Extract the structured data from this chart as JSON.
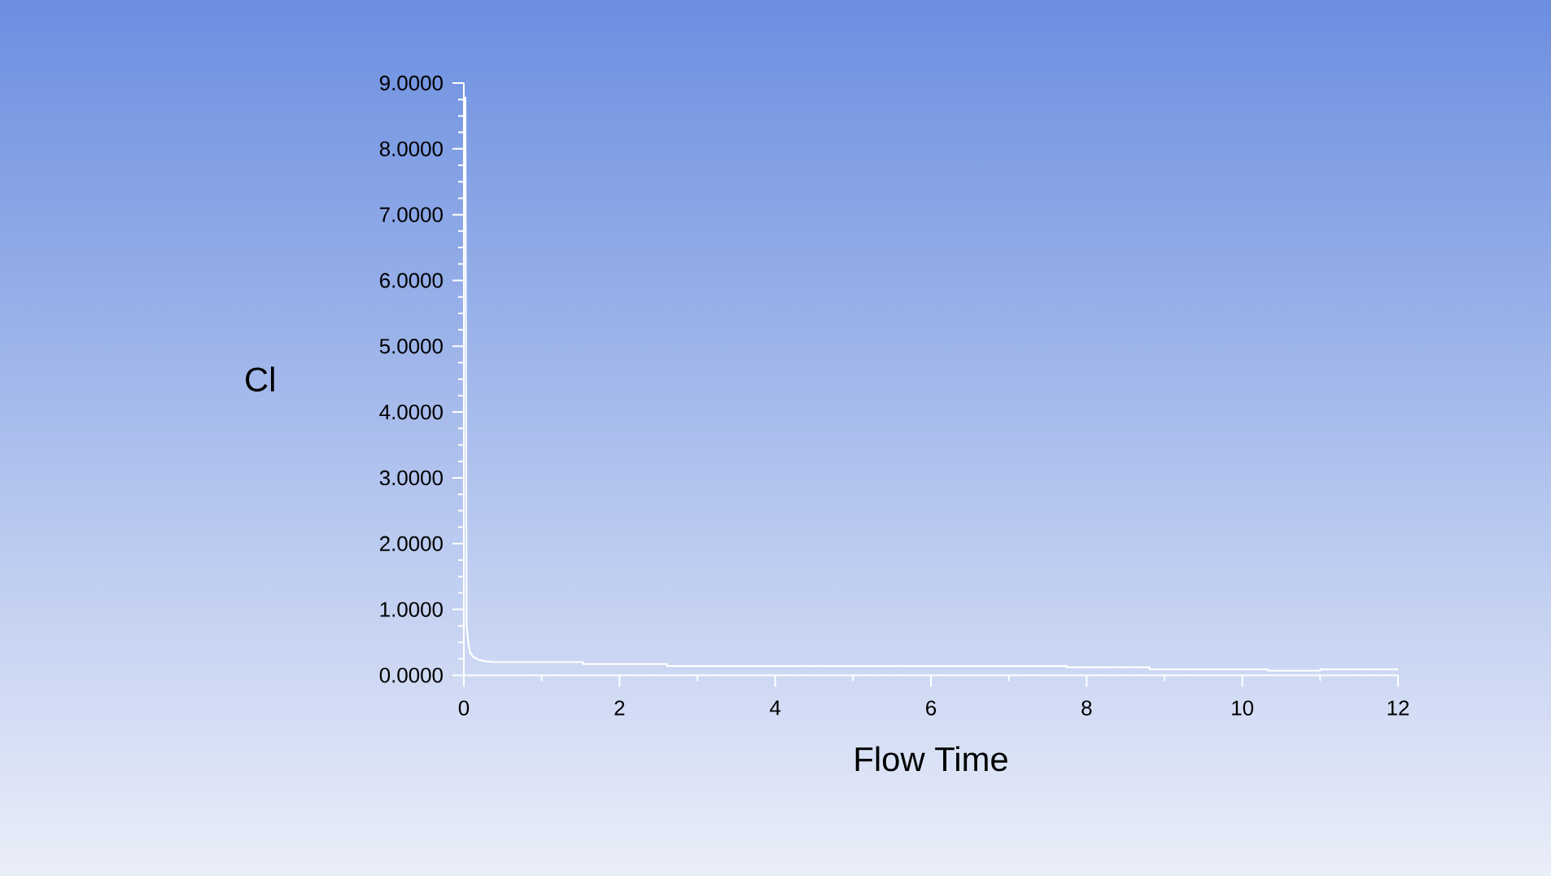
{
  "chart_data": {
    "type": "line",
    "xlabel": "Flow Time",
    "ylabel": "Cl",
    "x": [
      0.02,
      0.035,
      0.06,
      0.08,
      0.12,
      0.18,
      0.28,
      0.4,
      1.53,
      1.53,
      2.61,
      2.61,
      7.74,
      7.74,
      8.81,
      8.81,
      10.33,
      10.33,
      11.0,
      11.0,
      12
    ],
    "series": [
      {
        "color": "#ffffff",
        "values": [
          8.78,
          0.75,
          0.47,
          0.35,
          0.28,
          0.24,
          0.21,
          0.2,
          0.2,
          0.17,
          0.17,
          0.14,
          0.14,
          0.12,
          0.12,
          0.09,
          0.09,
          0.07,
          0.07,
          0.09,
          0.09
        ]
      }
    ],
    "xlim": [
      0,
      12
    ],
    "ylim": [
      0,
      9
    ],
    "xticks": [
      0,
      {
        "value": 1,
        "label": null
      },
      2,
      {
        "value": 3,
        "label": null
      },
      4,
      {
        "value": 5,
        "label": null
      },
      6,
      {
        "value": 7,
        "label": null
      },
      8,
      {
        "value": 9,
        "label": null
      },
      10,
      {
        "value": 11,
        "label": null
      },
      12
    ],
    "yticks": [
      {
        "value": 0,
        "label": "0.0000"
      },
      {
        "value": 0.25,
        "label": null
      },
      {
        "value": 0.5,
        "label": null
      },
      {
        "value": 0.75,
        "label": null
      },
      {
        "value": 1,
        "label": "1.0000"
      },
      {
        "value": 1.25,
        "label": null
      },
      {
        "value": 1.5,
        "label": null
      },
      {
        "value": 1.75,
        "label": null
      },
      {
        "value": 2,
        "label": "2.0000"
      },
      {
        "value": 2.25,
        "label": null
      },
      {
        "value": 2.5,
        "label": null
      },
      {
        "value": 2.75,
        "label": null
      },
      {
        "value": 3,
        "label": "3.0000"
      },
      {
        "value": 3.25,
        "label": null
      },
      {
        "value": 3.5,
        "label": null
      },
      {
        "value": 3.75,
        "label": null
      },
      {
        "value": 4,
        "label": "4.0000"
      },
      {
        "value": 4.25,
        "label": null
      },
      {
        "value": 4.5,
        "label": null
      },
      {
        "value": 4.75,
        "label": null
      },
      {
        "value": 5,
        "label": "5.0000"
      },
      {
        "value": 5.25,
        "label": null
      },
      {
        "value": 5.5,
        "label": null
      },
      {
        "value": 5.75,
        "label": null
      },
      {
        "value": 6,
        "label": "6.0000"
      },
      {
        "value": 6.25,
        "label": null
      },
      {
        "value": 6.5,
        "label": null
      },
      {
        "value": 6.75,
        "label": null
      },
      {
        "value": 7,
        "label": "7.0000"
      },
      {
        "value": 7.25,
        "label": null
      },
      {
        "value": 7.5,
        "label": null
      },
      {
        "value": 7.75,
        "label": null
      },
      {
        "value": 8,
        "label": "8.0000"
      },
      {
        "value": 8.25,
        "label": null
      },
      {
        "value": 8.5,
        "label": null
      },
      {
        "value": 8.75,
        "label": null
      },
      {
        "value": 9,
        "label": "9.0000"
      }
    ],
    "marker": "none",
    "line_style": "solid"
  }
}
